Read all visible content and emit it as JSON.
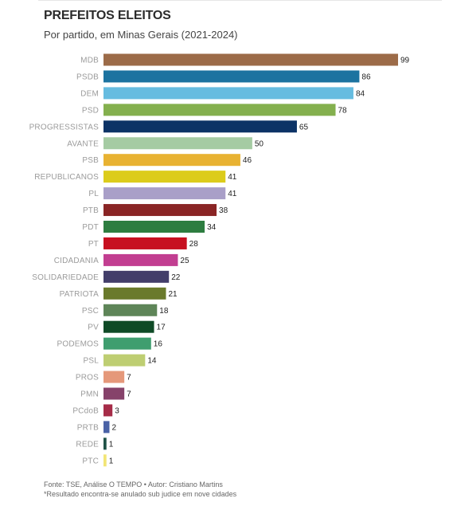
{
  "title": "PREFEITOS ELEITOS",
  "subtitle": "Por partido, em Minas Gerais (2021-2024)",
  "footer": {
    "source": "Fonte: TSE, Análise O TEMPO • Autor: Cristiano Martins",
    "note": "*Resultado encontra-se anulado sub judice em nove cidades"
  },
  "chart_data": {
    "type": "bar",
    "orientation": "horizontal",
    "title": "PREFEITOS ELEITOS",
    "subtitle": "Por partido, em Minas Gerais (2021-2024)",
    "xlabel": "",
    "ylabel": "",
    "grid": false,
    "categories": [
      "MDB",
      "PSDB",
      "DEM",
      "PSD",
      "PROGRESSISTAS",
      "AVANTE",
      "PSB",
      "REPUBLICANOS",
      "PL",
      "PTB",
      "PDT",
      "PT",
      "CIDADANIA",
      "SOLIDARIEDADE",
      "PATRIOTA",
      "PSC",
      "PV",
      "PODEMOS",
      "PSL",
      "PROS",
      "PMN",
      "PCdoB",
      "PRTB",
      "REDE",
      "PTC"
    ],
    "values": [
      99,
      86,
      84,
      78,
      65,
      50,
      46,
      41,
      41,
      38,
      34,
      28,
      25,
      22,
      21,
      18,
      17,
      16,
      14,
      7,
      7,
      3,
      2,
      1,
      1
    ],
    "colors": [
      "#9c6b48",
      "#1c73a0",
      "#66bce0",
      "#84b04e",
      "#0c3366",
      "#a5cba3",
      "#e8b232",
      "#dccc1b",
      "#a99fc8",
      "#8a2525",
      "#2d7d40",
      "#c71020",
      "#c23e91",
      "#433e6a",
      "#6a7a2c",
      "#5e8558",
      "#0f4a26",
      "#3f9e6f",
      "#bece72",
      "#e5987a",
      "#86426a",
      "#a62c48",
      "#4a62a6",
      "#1f5246",
      "#f2e575"
    ]
  }
}
